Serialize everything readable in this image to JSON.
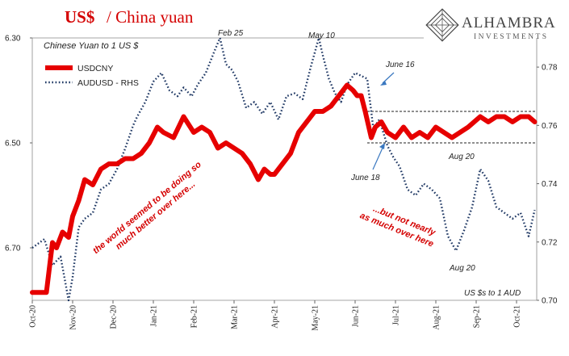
{
  "title": {
    "primary": "US$",
    "secondary": "/ China yuan"
  },
  "subtitle": "Chinese Yuan to 1 US $",
  "right_axis_note": "US $s to 1 AUD",
  "logo": {
    "name": "ALHAMBRA",
    "tagline": "INVESTMENTS"
  },
  "colors": {
    "usdcny": "#e60000",
    "audusd": "#1f3864",
    "accent_text": "#d40000"
  },
  "chart_data": {
    "type": "line",
    "x_labels": [
      "Oct-20",
      "Nov-20",
      "Dec-20",
      "Jan-21",
      "Feb-21",
      "Mar-21",
      "Apr-21",
      "May-21",
      "Jun-21",
      "Jul-21",
      "Aug-21",
      "Sep-21",
      "Oct-21"
    ],
    "y_left": {
      "ticks": [
        "6.30",
        "6.50",
        "6.70"
      ],
      "range": [
        6.3,
        6.8
      ],
      "inverted": true
    },
    "y_right": {
      "ticks": [
        "0.78",
        "0.76",
        "0.74",
        "0.72",
        "0.70"
      ],
      "range": [
        0.7,
        0.79
      ]
    },
    "legend": {
      "position": "top-left",
      "entries": [
        "USDCNY",
        "AUDUSD - RHS"
      ]
    },
    "grid": false,
    "series": [
      {
        "name": "USDCNY",
        "axis": "left",
        "style": "solid",
        "x": [
          0,
          0.35,
          0.5,
          0.6,
          0.75,
          0.9,
          1,
          1.15,
          1.3,
          1.5,
          1.7,
          1.9,
          2.1,
          2.3,
          2.5,
          2.7,
          2.9,
          3.1,
          3.25,
          3.5,
          3.75,
          4,
          4.2,
          4.4,
          4.6,
          4.8,
          5,
          5.2,
          5.4,
          5.6,
          5.75,
          5.9,
          6,
          6.2,
          6.4,
          6.6,
          6.8,
          7,
          7.2,
          7.4,
          7.6,
          7.8,
          7.95,
          8.05,
          8.15,
          8.25,
          8.4,
          8.5,
          8.65,
          8.8,
          9,
          9.2,
          9.4,
          9.6,
          9.8,
          10,
          10.2,
          10.4,
          10.6,
          10.8,
          10.95,
          11.1,
          11.3,
          11.5,
          11.7,
          11.9,
          12.1,
          12.3,
          12.45
        ],
        "values": [
          6.785,
          6.785,
          6.69,
          6.7,
          6.67,
          6.68,
          6.64,
          6.61,
          6.57,
          6.58,
          6.55,
          6.54,
          6.54,
          6.53,
          6.53,
          6.52,
          6.5,
          6.47,
          6.48,
          6.49,
          6.45,
          6.48,
          6.47,
          6.48,
          6.51,
          6.5,
          6.51,
          6.52,
          6.54,
          6.57,
          6.55,
          6.56,
          6.56,
          6.54,
          6.52,
          6.48,
          6.46,
          6.44,
          6.44,
          6.43,
          6.41,
          6.39,
          6.4,
          6.41,
          6.41,
          6.44,
          6.49,
          6.47,
          6.46,
          6.48,
          6.49,
          6.47,
          6.49,
          6.48,
          6.49,
          6.47,
          6.48,
          6.49,
          6.48,
          6.47,
          6.46,
          6.45,
          6.46,
          6.45,
          6.45,
          6.46,
          6.45,
          6.45,
          6.46
        ]
      },
      {
        "name": "AUDUSD - RHS",
        "axis": "right",
        "style": "dotted",
        "x": [
          0,
          0.3,
          0.5,
          0.7,
          0.9,
          1,
          1.15,
          1.3,
          1.5,
          1.7,
          1.9,
          2.1,
          2.3,
          2.5,
          2.6,
          2.8,
          3,
          3.2,
          3.4,
          3.6,
          3.75,
          3.95,
          4.1,
          4.3,
          4.5,
          4.65,
          4.8,
          4.95,
          5.1,
          5.3,
          5.5,
          5.7,
          5.9,
          6.1,
          6.3,
          6.5,
          6.7,
          6.9,
          7.1,
          7.2,
          7.35,
          7.5,
          7.65,
          7.8,
          8,
          8.15,
          8.3,
          8.45,
          8.6,
          8.8,
          8.95,
          9.1,
          9.3,
          9.5,
          9.7,
          9.9,
          10.1,
          10.3,
          10.5,
          10.7,
          10.9,
          11.1,
          11.3,
          11.5,
          11.7,
          11.9,
          12.1,
          12.3,
          12.45
        ],
        "values": [
          0.718,
          0.721,
          0.712,
          0.715,
          0.7,
          0.708,
          0.725,
          0.728,
          0.73,
          0.738,
          0.74,
          0.745,
          0.752,
          0.76,
          0.763,
          0.768,
          0.775,
          0.778,
          0.772,
          0.77,
          0.773,
          0.77,
          0.774,
          0.778,
          0.785,
          0.79,
          0.781,
          0.779,
          0.775,
          0.766,
          0.768,
          0.764,
          0.768,
          0.762,
          0.77,
          0.771,
          0.769,
          0.78,
          0.79,
          0.784,
          0.776,
          0.771,
          0.768,
          0.774,
          0.778,
          0.777,
          0.776,
          0.759,
          0.762,
          0.753,
          0.749,
          0.746,
          0.738,
          0.736,
          0.74,
          0.738,
          0.735,
          0.722,
          0.717,
          0.724,
          0.732,
          0.745,
          0.741,
          0.732,
          0.73,
          0.728,
          0.73,
          0.722,
          0.731
        ]
      }
    ],
    "reference_lines": [
      {
        "axis": "left",
        "value": 6.44,
        "x_from": 8.3,
        "x_to": 12.5,
        "style": "dashed"
      },
      {
        "axis": "left",
        "value": 6.5,
        "x_from": 8.3,
        "x_to": 12.5,
        "style": "dashed"
      }
    ],
    "annotations": [
      {
        "text": "Feb 25",
        "style": "plain"
      },
      {
        "text": "May 10",
        "style": "plain"
      },
      {
        "text": "June 16",
        "style": "plain"
      },
      {
        "text": "June 18",
        "style": "plain"
      },
      {
        "text": "Aug 20",
        "style": "plain"
      },
      {
        "text": "Aug 20",
        "style": "plain"
      }
    ],
    "commentary": [
      {
        "lines": [
          "the world seemed to be doing so",
          "much better over here..."
        ]
      },
      {
        "lines": [
          "...but not nearly",
          "as much over here"
        ]
      }
    ]
  }
}
